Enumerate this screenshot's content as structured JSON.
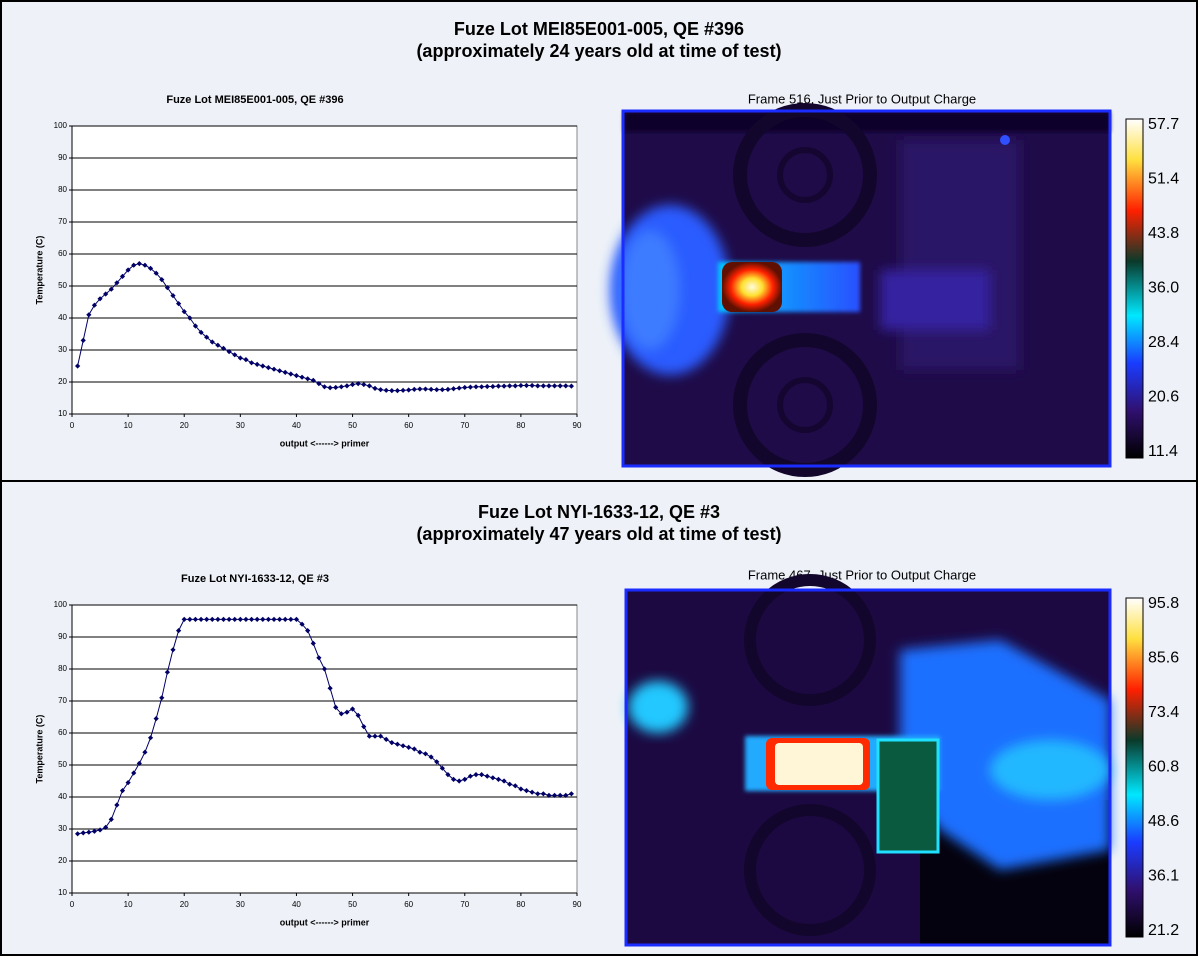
{
  "panels": [
    {
      "heading": [
        "Fuze Lot MEI85E001-005, QE #396",
        "(approximately 24 years old at time of test)"
      ],
      "image_caption": "Frame 516, Just Prior to Output Charge",
      "colorbar_labels": [
        "57.7",
        "51.4",
        "43.8",
        "36.0",
        "28.4",
        "20.6",
        "11.4"
      ]
    },
    {
      "heading": [
        "Fuze Lot NYI-1633-12, QE #3",
        "(approximately 47 years old at time of test)"
      ],
      "image_caption": "Frame 467, Just Prior to Output Charge",
      "colorbar_labels": [
        "95.8",
        "85.6",
        "73.4",
        "60.8",
        "48.6",
        "36.1",
        "21.2"
      ]
    }
  ],
  "chart_data": [
    {
      "type": "line",
      "title": "Fuze Lot MEI85E001-005, QE #396",
      "x_label": "output <------> primer",
      "y_label": "Temperature (C)",
      "x": [
        1,
        2,
        3,
        4,
        5,
        6,
        7,
        8,
        9,
        10,
        11,
        12,
        13,
        14,
        15,
        16,
        17,
        18,
        19,
        20,
        21,
        22,
        23,
        24,
        25,
        26,
        27,
        28,
        29,
        30,
        31,
        32,
        33,
        34,
        35,
        36,
        37,
        38,
        39,
        40,
        41,
        42,
        43,
        44,
        45,
        46,
        47,
        48,
        49,
        50,
        51,
        52,
        53,
        54,
        55,
        56,
        57,
        58,
        59,
        60,
        61,
        62,
        63,
        64,
        65,
        66,
        67,
        68,
        69,
        70,
        71,
        72,
        73,
        74,
        75,
        76,
        77,
        78,
        79,
        80,
        81,
        82,
        83,
        84,
        85,
        86,
        87,
        88,
        89
      ],
      "series": [
        {
          "color": "#000066",
          "values": [
            25,
            33,
            41,
            44,
            46,
            47.5,
            49,
            51,
            53,
            55,
            56.5,
            57,
            56.5,
            55.5,
            54,
            52,
            49.5,
            47,
            44.5,
            42,
            40,
            37.5,
            35.5,
            34,
            32.5,
            31.5,
            30.5,
            29.5,
            28.5,
            27.5,
            27,
            26,
            25.5,
            25,
            24.5,
            24,
            23.5,
            23,
            22.5,
            22,
            21.5,
            21,
            20.5,
            19.5,
            18.5,
            18.2,
            18.3,
            18.5,
            18.8,
            19.2,
            19.5,
            19.2,
            18.8,
            18,
            17.6,
            17.4,
            17.3,
            17.3,
            17.4,
            17.5,
            17.7,
            17.8,
            17.8,
            17.7,
            17.6,
            17.6,
            17.7,
            17.9,
            18.1,
            18.3,
            18.4,
            18.5,
            18.5,
            18.6,
            18.6,
            18.7,
            18.7,
            18.8,
            18.8,
            18.9,
            18.9,
            18.9,
            18.8,
            18.8,
            18.8,
            18.8,
            18.8,
            18.8,
            18.7
          ]
        }
      ],
      "xlim": [
        0,
        90
      ],
      "ylim": [
        10,
        100
      ],
      "xticks": [
        0,
        10,
        20,
        30,
        40,
        50,
        60,
        70,
        80,
        90
      ],
      "yticks": [
        10,
        20,
        30,
        40,
        50,
        60,
        70,
        80,
        90,
        100
      ],
      "grid": true
    },
    {
      "type": "line",
      "title": "Fuze Lot NYI-1633-12, QE #3",
      "x_label": "output <------> primer",
      "y_label": "Temperature (C)",
      "x": [
        1,
        2,
        3,
        4,
        5,
        6,
        7,
        8,
        9,
        10,
        11,
        12,
        13,
        14,
        15,
        16,
        17,
        18,
        19,
        20,
        21,
        22,
        23,
        24,
        25,
        26,
        27,
        28,
        29,
        30,
        31,
        32,
        33,
        34,
        35,
        36,
        37,
        38,
        39,
        40,
        41,
        42,
        43,
        44,
        45,
        46,
        47,
        48,
        49,
        50,
        51,
        52,
        53,
        54,
        55,
        56,
        57,
        58,
        59,
        60,
        61,
        62,
        63,
        64,
        65,
        66,
        67,
        68,
        69,
        70,
        71,
        72,
        73,
        74,
        75,
        76,
        77,
        78,
        79,
        80,
        81,
        82,
        83,
        84,
        85,
        86,
        87,
        88,
        89
      ],
      "series": [
        {
          "color": "#000066",
          "values": [
            28.5,
            28.8,
            29,
            29.3,
            29.7,
            30.5,
            33,
            37.5,
            42,
            44.5,
            47.5,
            50.5,
            54,
            58.5,
            64.5,
            71,
            79,
            86,
            92,
            95.5,
            95.5,
            95.5,
            95.5,
            95.5,
            95.5,
            95.5,
            95.5,
            95.5,
            95.5,
            95.5,
            95.5,
            95.5,
            95.5,
            95.5,
            95.5,
            95.5,
            95.5,
            95.5,
            95.5,
            95.5,
            94,
            92,
            88,
            83.5,
            80,
            74,
            68,
            66,
            66.5,
            67.5,
            65.5,
            62,
            59,
            59,
            59,
            58,
            57,
            56.5,
            56,
            55.5,
            55,
            54,
            53.5,
            52.5,
            51,
            49,
            47,
            45.5,
            45,
            45.5,
            46.5,
            47,
            47,
            46.5,
            46,
            45.5,
            45,
            44,
            43.5,
            42.5,
            42,
            41.5,
            41,
            41,
            40.5,
            40.5,
            40.5,
            40.5,
            41
          ]
        }
      ],
      "xlim": [
        0,
        90
      ],
      "ylim": [
        10,
        100
      ],
      "xticks": [
        0,
        10,
        20,
        30,
        40,
        50,
        60,
        70,
        80,
        90
      ],
      "yticks": [
        10,
        20,
        30,
        40,
        50,
        60,
        70,
        80,
        90,
        100
      ],
      "grid": true
    }
  ]
}
